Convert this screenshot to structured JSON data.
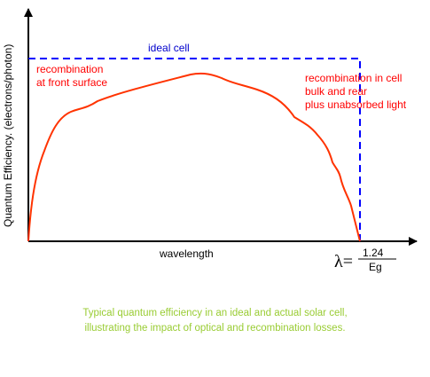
{
  "colors": {
    "axis": "#000000",
    "ideal_line": "#0000ff",
    "actual_curve": "#ff3300",
    "loss_label": "#ff0000",
    "ideal_label": "#0000cc",
    "caption": "#99cc33"
  },
  "diagram": {
    "ylabel": "Quantum Efficiency. (electrons/photon)",
    "xlabel": "wavelength",
    "ideal_label": "ideal cell",
    "front_loss": [
      "recombination",
      "at front surface"
    ],
    "bulk_loss": [
      "recombination in cell",
      "bulk and rear",
      "plus unabsorbed light"
    ],
    "cutoff": {
      "symbol": "λ=",
      "numerator": "1.24",
      "denominator": "Eg"
    }
  },
  "caption": [
    "Typical quantum efficiency in an ideal and actual solar cell,",
    "illustrating the impact of optical and recombination losses."
  ]
}
